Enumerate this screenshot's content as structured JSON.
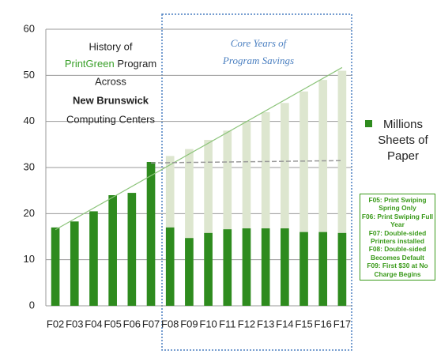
{
  "chart_data": {
    "type": "bar",
    "annotation": [
      "History of",
      "PrintGreen",
      "Program",
      "Across",
      "New Brunswick",
      "Computing Centers"
    ],
    "highlight_label": [
      "Core Years of",
      "Program Savings"
    ],
    "categories": [
      "F02",
      "F03",
      "F04",
      "F05",
      "F06",
      "F07",
      "F08",
      "F09",
      "F10",
      "F11",
      "F12",
      "F13",
      "F14",
      "F15",
      "F16",
      "F17"
    ],
    "series": [
      {
        "name": "Millions Sheets of Paper",
        "color": "#2e8b1e",
        "values": [
          17,
          18.3,
          20.5,
          24,
          24.5,
          31.2,
          17,
          14.7,
          15.8,
          16.6,
          16.8,
          16.8,
          16.8,
          16,
          16,
          15.8
        ]
      },
      {
        "color": "#dde6cf",
        "values": [
          null,
          null,
          null,
          null,
          null,
          null,
          32.5,
          34,
          36,
          38,
          40,
          42,
          44,
          46.5,
          49,
          51
        ]
      }
    ],
    "lines": [
      {
        "x": [
          "F02",
          "F17"
        ],
        "values": [
          16.5,
          51.7
        ],
        "color": "#8cc47a",
        "style": "solid"
      },
      {
        "x": [
          "F07",
          "F17"
        ],
        "values": [
          31,
          31.5
        ],
        "color": "#999999",
        "style": "dashed"
      }
    ],
    "notes": [
      "F05: Print Swiping Spring Only",
      "F06: Print Swiping Full Year",
      "F07: Double-sided Printers installed",
      "F08: Double-sided Becomes Default",
      "F09: First $30 at No Charge Begins"
    ],
    "ylim": [
      0,
      60
    ],
    "yticks": [
      0,
      10,
      20,
      30,
      40,
      50,
      60
    ],
    "grid": true
  }
}
